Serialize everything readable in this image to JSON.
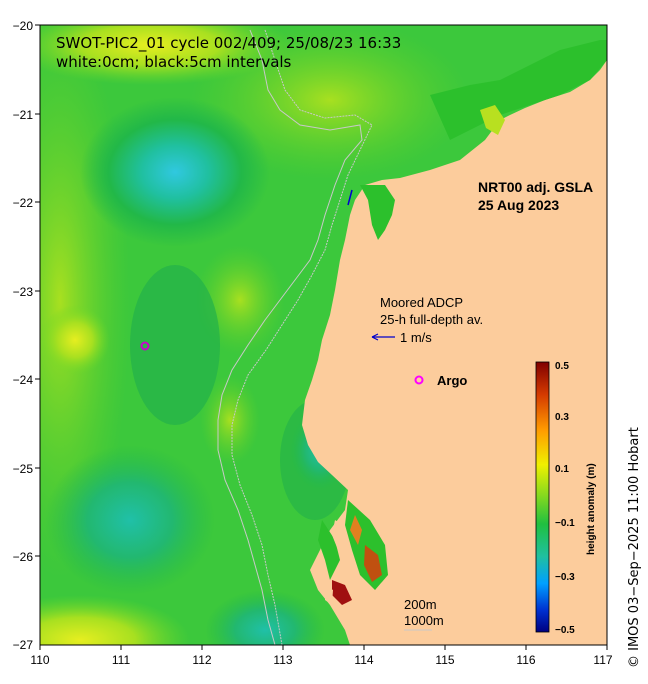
{
  "title": {
    "line1": "SWOT-PIC2_01 cycle 002/409; 25/08/23 16:33",
    "line2": "white:0cm; black:5cm intervals"
  },
  "product": {
    "line1": "NRT00 adj. GSLA",
    "line2": "25 Aug 2023"
  },
  "adcp": {
    "line1": "Moored ADCP",
    "line2": "25-h full-depth av.",
    "scale_label": "1 m/s",
    "arrow_color": "#0000cc"
  },
  "argo": {
    "label": "Argo",
    "marker_color": "#ff00ff"
  },
  "contours": {
    "line1": "200m",
    "line2": "1000m"
  },
  "x_axis": {
    "ticks": [
      "110",
      "111",
      "112",
      "113",
      "114",
      "115",
      "116",
      "117"
    ],
    "range": [
      110,
      117
    ]
  },
  "y_axis": {
    "ticks": [
      "−20",
      "−21",
      "−22",
      "−23",
      "−24",
      "−25",
      "−26",
      "−27"
    ],
    "range": [
      -27,
      -20
    ]
  },
  "colorbar": {
    "label": "height anomaly (m)",
    "ticks": [
      "0.5",
      "0.3",
      "0.1",
      "−0.1",
      "−0.3",
      "−0.5"
    ],
    "range": [
      -0.5,
      0.5
    ]
  },
  "credit": "© IMOS 03−Sep−2025 11:00 Hobart",
  "colors": {
    "land": "#fccc9c",
    "ocean_base": "#2cc02c"
  }
}
